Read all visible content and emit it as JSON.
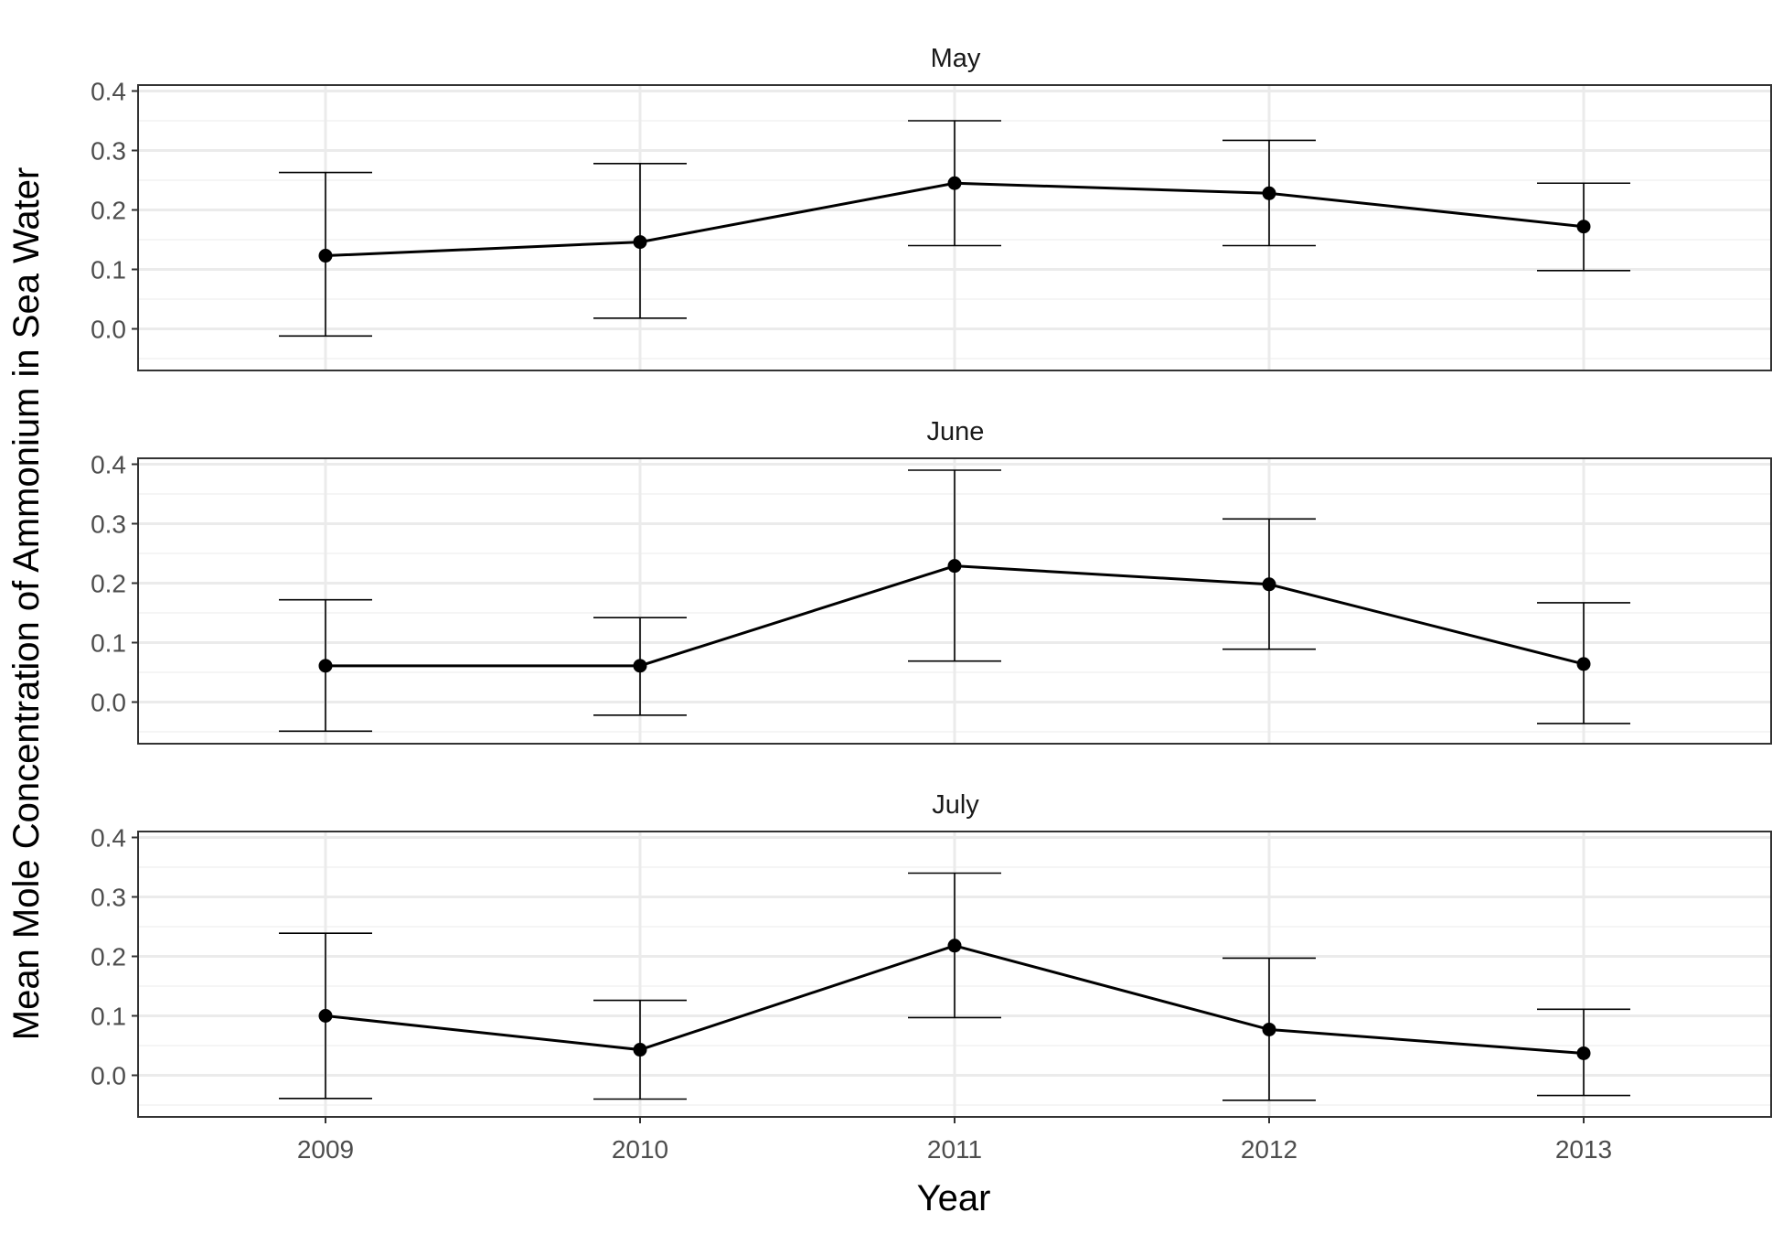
{
  "chart_data": {
    "type": "line",
    "xlabel": "Year",
    "ylabel": "Mean Mole Concentration of Ammonium in Sea Water",
    "x": [
      2009,
      2010,
      2011,
      2012,
      2013
    ],
    "x_tick_labels": [
      "2009",
      "2010",
      "2011",
      "2012",
      "2013"
    ],
    "y_tick_labels": [
      "0.0",
      "0.1",
      "0.2",
      "0.3",
      "0.4"
    ],
    "ylim": [
      -0.07,
      0.41
    ],
    "y_ticks": [
      0.0,
      0.1,
      0.2,
      0.3,
      0.4
    ],
    "grid": true,
    "error_bars": true,
    "colors": {
      "line": "#000000",
      "grid": "#ebebeb",
      "panel_border": "#333333"
    },
    "panels": [
      {
        "title": "May",
        "values": [
          0.123,
          0.146,
          0.245,
          0.228,
          0.172
        ],
        "lower": [
          -0.012,
          0.018,
          0.14,
          0.14,
          0.098
        ],
        "upper": [
          0.263,
          0.278,
          0.35,
          0.317,
          0.245
        ]
      },
      {
        "title": "June",
        "values": [
          0.061,
          0.061,
          0.229,
          0.198,
          0.064
        ],
        "lower": [
          -0.049,
          -0.022,
          0.069,
          0.089,
          -0.036
        ],
        "upper": [
          0.172,
          0.142,
          0.39,
          0.308,
          0.167
        ]
      },
      {
        "title": "July",
        "values": [
          0.1,
          0.043,
          0.218,
          0.077,
          0.037
        ],
        "lower": [
          -0.039,
          -0.04,
          0.097,
          -0.042,
          -0.034
        ],
        "upper": [
          0.239,
          0.126,
          0.34,
          0.197,
          0.111
        ]
      }
    ]
  }
}
